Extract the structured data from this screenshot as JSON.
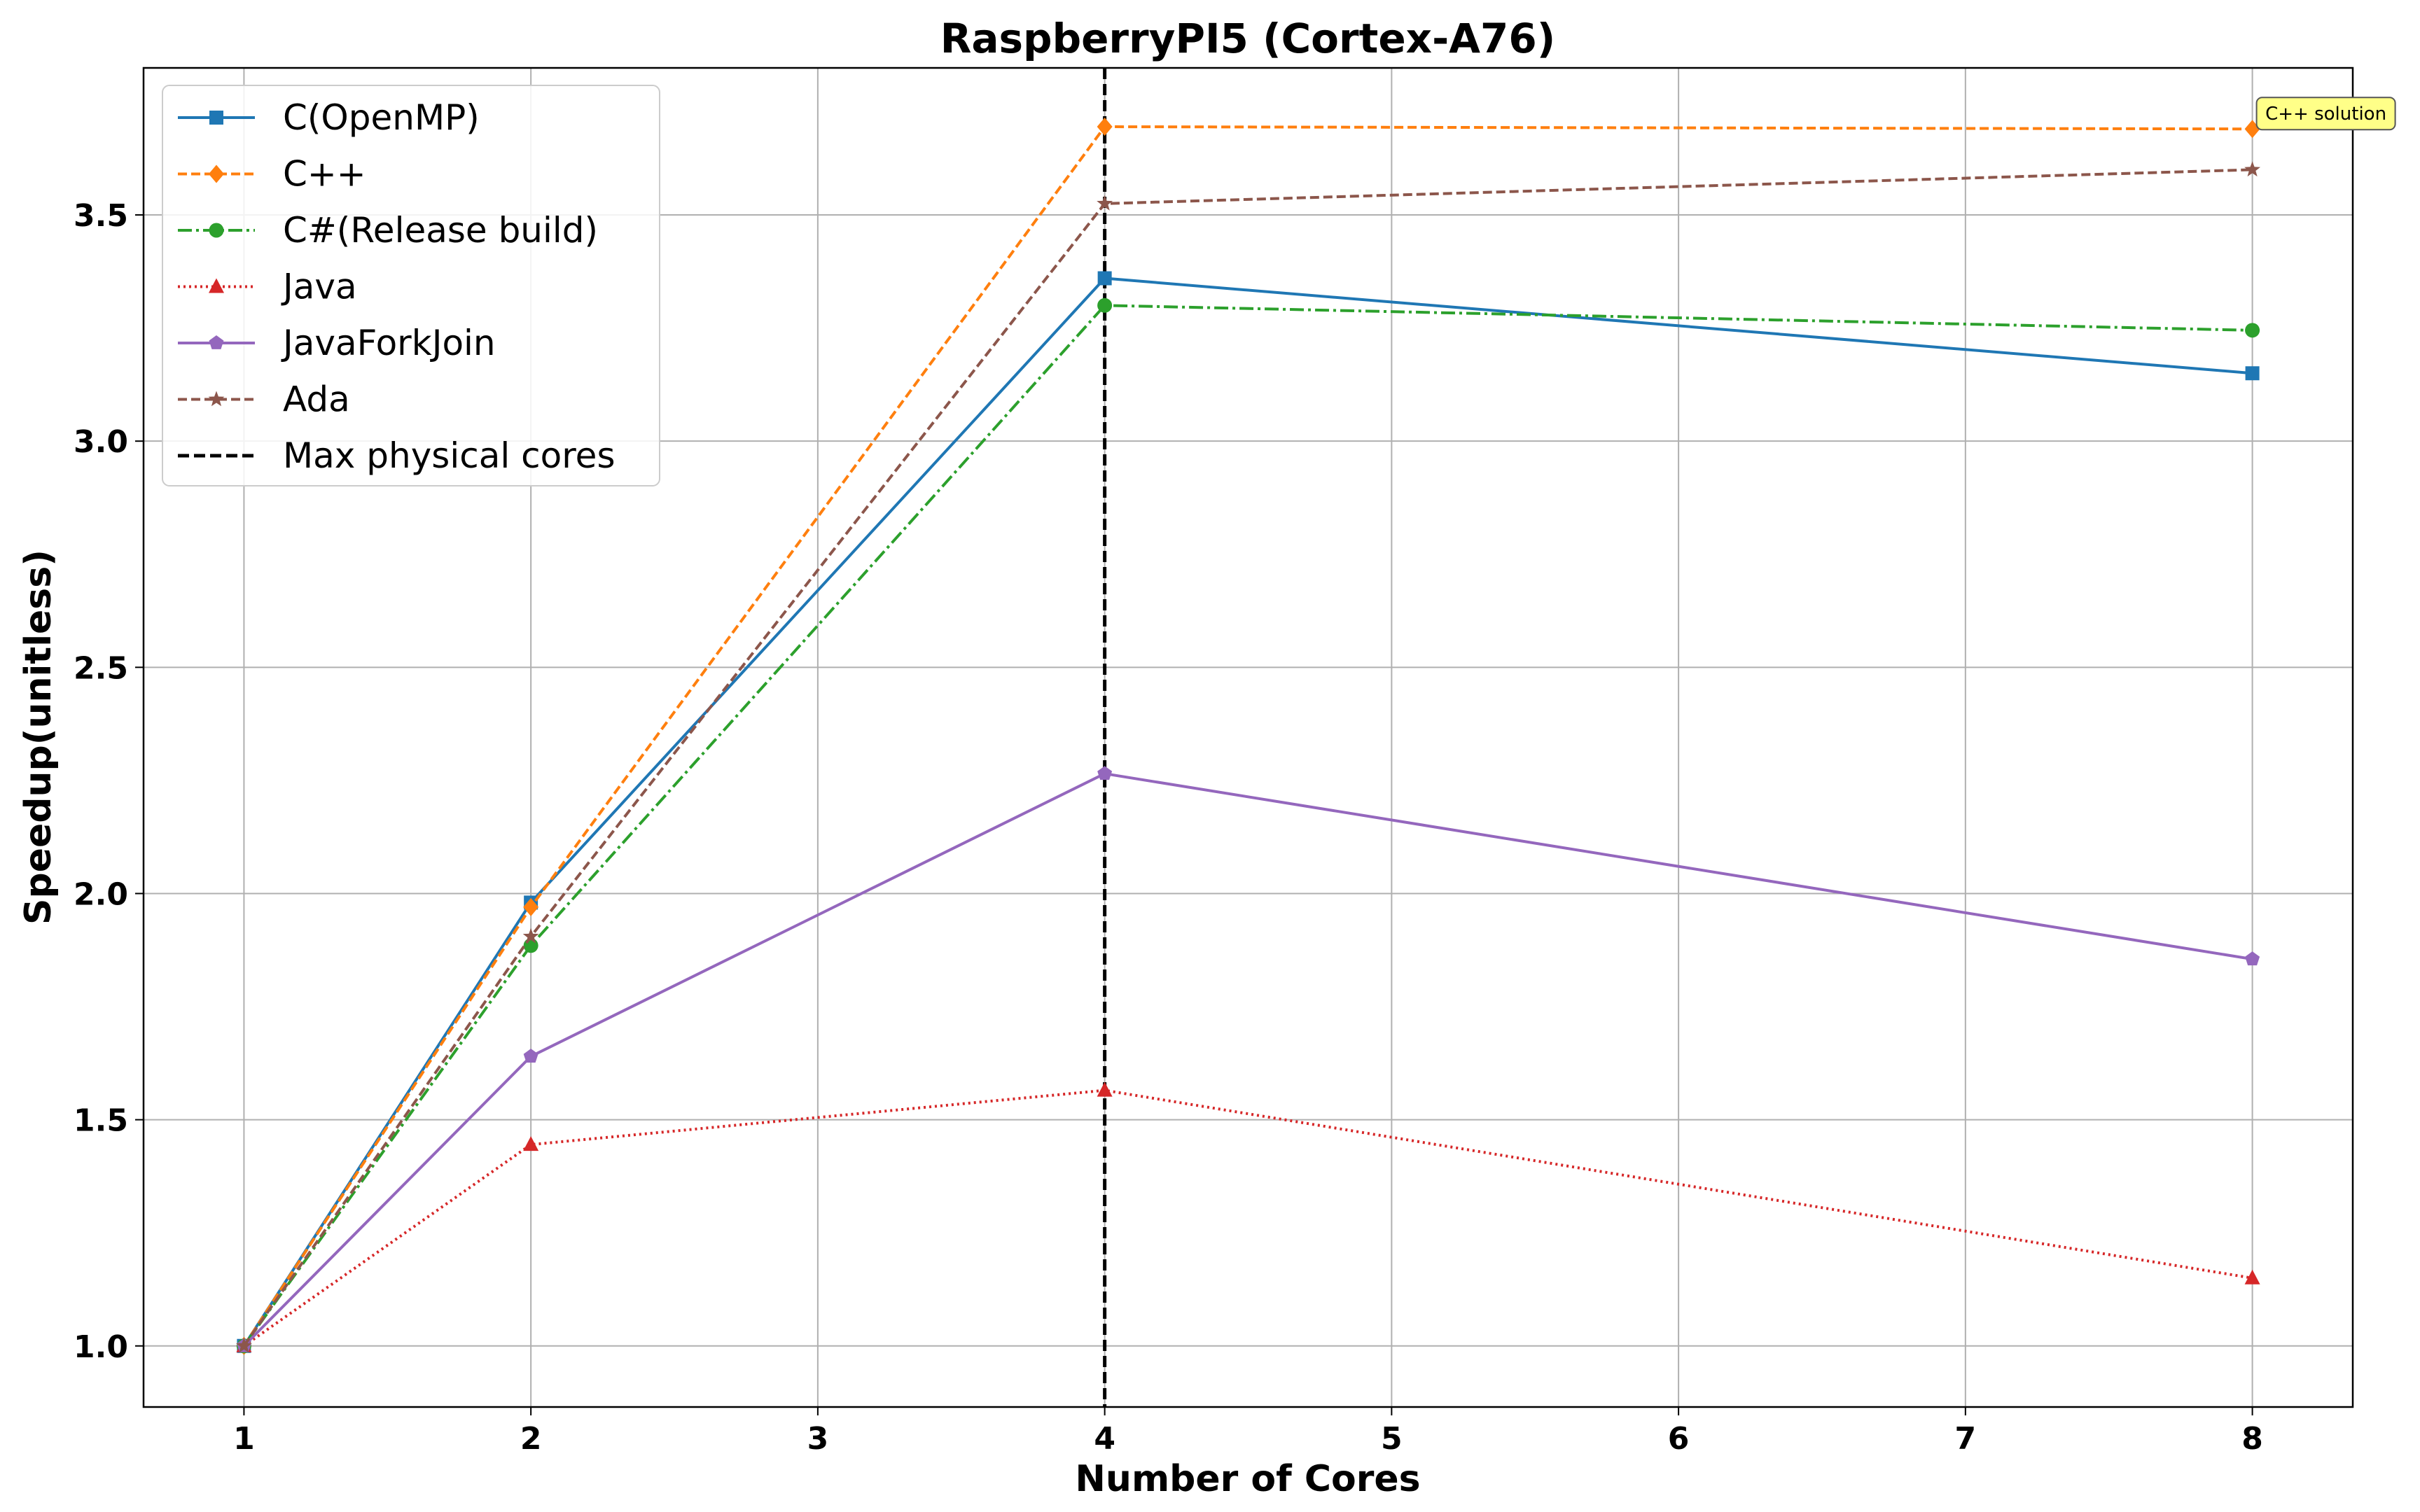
{
  "chart_data": {
    "type": "line",
    "title": "RaspberryPI5 (Cortex-A76)",
    "xlabel": "Number of Cores",
    "ylabel": "Speedup(unitless)",
    "x": [
      1,
      2,
      4,
      8
    ],
    "xlim": [
      0.65,
      8.35
    ],
    "ylim": [
      0.865,
      3.825
    ],
    "xticks": [
      1,
      2,
      3,
      4,
      5,
      6,
      7,
      8
    ],
    "yticks": [
      1.0,
      1.5,
      2.0,
      2.5,
      3.0,
      3.5
    ],
    "ytick_labels": [
      "1.0",
      "1.5",
      "2.0",
      "2.5",
      "3.0",
      "3.5"
    ],
    "grid": true,
    "legend_position": "top-left",
    "series": [
      {
        "name": "C(OpenMP)",
        "values": [
          1.0,
          1.98,
          3.36,
          3.15
        ],
        "color": "#1f77b4",
        "dash": "solid",
        "marker": "square"
      },
      {
        "name": "C++",
        "values": [
          1.0,
          1.97,
          3.695,
          3.69
        ],
        "color": "#ff7f0e",
        "dash": "dashed",
        "marker": "diamond"
      },
      {
        "name": "C#(Release build)",
        "values": [
          1.0,
          1.885,
          3.3,
          3.245
        ],
        "color": "#2ca02c",
        "dash": "dashdot",
        "marker": "circle"
      },
      {
        "name": "Java",
        "values": [
          1.0,
          1.445,
          1.565,
          1.15
        ],
        "color": "#d62728",
        "dash": "dotted",
        "marker": "triangle"
      },
      {
        "name": "JavaForkJoin",
        "values": [
          1.0,
          1.64,
          2.265,
          1.855
        ],
        "color": "#9467bd",
        "dash": "solid",
        "marker": "pentagon"
      },
      {
        "name": "Ada",
        "values": [
          1.0,
          1.905,
          3.525,
          3.6
        ],
        "color": "#8c564b",
        "dash": "dashed",
        "marker": "star"
      }
    ],
    "vline": {
      "x": 4,
      "name": "Max physical cores",
      "color": "#000000",
      "dash": "dashed"
    },
    "annotation": {
      "text": "C++ solution",
      "x": 8,
      "y": 3.69,
      "background": "#ffff88"
    }
  }
}
